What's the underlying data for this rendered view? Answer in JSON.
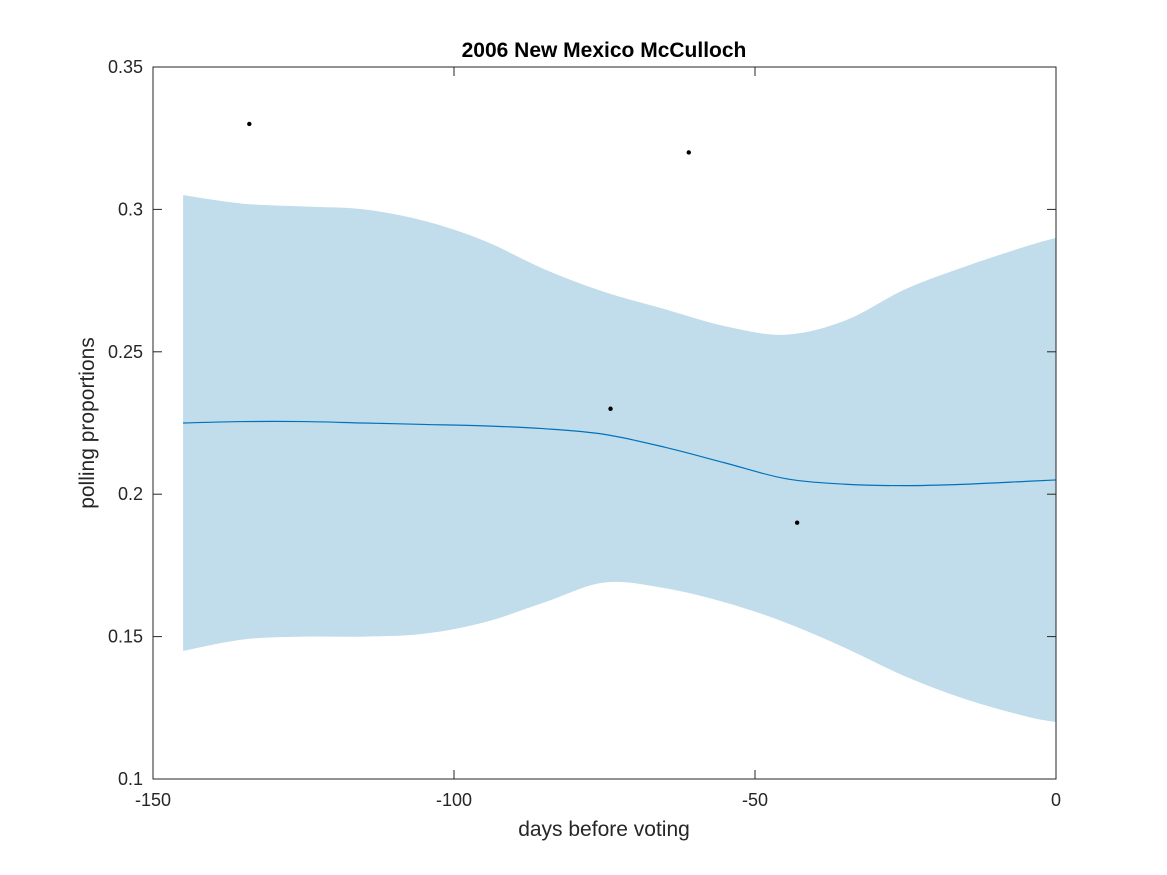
{
  "chart_data": {
    "type": "line",
    "title": "2006 New Mexico McCulloch",
    "xlabel": "days before voting",
    "ylabel": "polling proportions",
    "xlim": [
      -150,
      0
    ],
    "ylim": [
      0.1,
      0.35
    ],
    "xticks": [
      -150,
      -100,
      -50,
      0
    ],
    "xtick_labels": [
      "-150",
      "-100",
      "-50",
      "0"
    ],
    "yticks": [
      0.1,
      0.15,
      0.2,
      0.25,
      0.3,
      0.35
    ],
    "ytick_labels": [
      "0.1",
      "0.15",
      "0.2",
      "0.25",
      "0.3",
      "0.35"
    ],
    "grid": false,
    "colors": {
      "band": "#c1dcea",
      "line": "#0072bd",
      "points": "#000000",
      "axes": "#262626"
    },
    "band": {
      "x": [
        -145,
        -135,
        -125,
        -115,
        -105,
        -95,
        -85,
        -75,
        -65,
        -55,
        -45,
        -35,
        -25,
        -15,
        -5,
        0
      ],
      "upper": [
        0.305,
        0.302,
        0.301,
        0.3,
        0.296,
        0.289,
        0.279,
        0.271,
        0.265,
        0.259,
        0.256,
        0.261,
        0.272,
        0.28,
        0.287,
        0.29
      ],
      "lower": [
        0.145,
        0.149,
        0.15,
        0.15,
        0.151,
        0.155,
        0.162,
        0.169,
        0.167,
        0.162,
        0.155,
        0.146,
        0.136,
        0.128,
        0.122,
        0.12
      ]
    },
    "series": [
      {
        "x": [
          -145,
          -135,
          -125,
          -115,
          -105,
          -95,
          -85,
          -75,
          -65,
          -55,
          -45,
          -35,
          -25,
          -15,
          -5,
          0
        ],
        "values": [
          0.225,
          0.2255,
          0.2255,
          0.225,
          0.2245,
          0.224,
          0.223,
          0.221,
          0.2165,
          0.211,
          0.2055,
          0.2035,
          0.203,
          0.2035,
          0.2045,
          0.205
        ]
      }
    ],
    "points": {
      "x": [
        -134,
        -74,
        -61,
        -43
      ],
      "y": [
        0.33,
        0.23,
        0.32,
        0.19
      ]
    }
  }
}
